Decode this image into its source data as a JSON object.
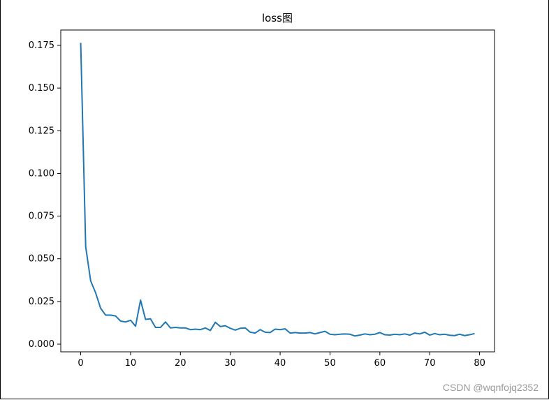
{
  "watermark": "CSDN @wqnfojq2352",
  "chart_data": {
    "type": "line",
    "title": "loss图",
    "xlabel": "",
    "ylabel": "",
    "xlim": [
      -4,
      83
    ],
    "ylim": [
      -0.0045,
      0.184
    ],
    "xticks": [
      0,
      10,
      20,
      30,
      40,
      50,
      60,
      70,
      80
    ],
    "xtick_labels": [
      "0",
      "10",
      "20",
      "30",
      "40",
      "50",
      "60",
      "70",
      "80"
    ],
    "yticks": [
      0.0,
      0.025,
      0.05,
      0.075,
      0.1,
      0.125,
      0.15,
      0.175
    ],
    "ytick_labels": [
      "0.000",
      "0.025",
      "0.050",
      "0.075",
      "0.100",
      "0.125",
      "0.150",
      "0.175"
    ],
    "grid": false,
    "series": [
      {
        "color": "#1f77b4",
        "x": [
          0,
          1,
          2,
          3,
          4,
          5,
          6,
          7,
          8,
          9,
          10,
          11,
          12,
          13,
          14,
          15,
          16,
          17,
          18,
          19,
          20,
          21,
          22,
          23,
          24,
          25,
          26,
          27,
          28,
          29,
          30,
          31,
          32,
          33,
          34,
          35,
          36,
          37,
          38,
          39,
          40,
          41,
          42,
          43,
          44,
          45,
          46,
          47,
          48,
          49,
          50,
          51,
          52,
          53,
          54,
          55,
          56,
          57,
          58,
          59,
          60,
          61,
          62,
          63,
          64,
          65,
          66,
          67,
          68,
          69,
          70,
          71,
          72,
          73,
          74,
          75,
          76,
          77,
          78,
          79
        ],
        "y": [
          0.1765,
          0.057,
          0.037,
          0.03,
          0.021,
          0.017,
          0.017,
          0.0165,
          0.0135,
          0.013,
          0.014,
          0.0105,
          0.0258,
          0.0145,
          0.0148,
          0.0098,
          0.0098,
          0.013,
          0.0095,
          0.0098,
          0.0095,
          0.0095,
          0.0085,
          0.0088,
          0.0085,
          0.0095,
          0.008,
          0.0128,
          0.0103,
          0.0108,
          0.0093,
          0.0082,
          0.0093,
          0.0095,
          0.007,
          0.0065,
          0.0085,
          0.007,
          0.0068,
          0.0088,
          0.0085,
          0.009,
          0.0065,
          0.0068,
          0.0065,
          0.0065,
          0.0068,
          0.006,
          0.0068,
          0.0075,
          0.0058,
          0.0055,
          0.0058,
          0.006,
          0.0058,
          0.0048,
          0.0053,
          0.006,
          0.0055,
          0.0058,
          0.0068,
          0.0055,
          0.0053,
          0.0058,
          0.0055,
          0.006,
          0.0053,
          0.0065,
          0.006,
          0.007,
          0.0053,
          0.0062,
          0.0055,
          0.0058,
          0.0052,
          0.005,
          0.0058,
          0.005,
          0.0055,
          0.0062
        ]
      }
    ]
  }
}
